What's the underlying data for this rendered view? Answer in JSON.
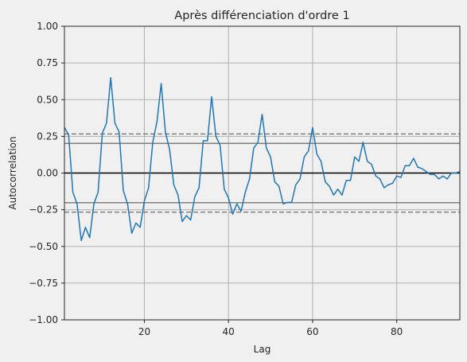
{
  "chart_data": {
    "type": "line",
    "title": "Après différenciation d'ordre 1",
    "xlabel": "Lag",
    "ylabel": "Autocorrelation",
    "xlim": [
      1,
      95
    ],
    "ylim": [
      -1.0,
      1.0
    ],
    "grid": true,
    "x_ticks": [
      20,
      40,
      60,
      80
    ],
    "x_tick_labels": [
      "20",
      "40",
      "60",
      "80"
    ],
    "y_ticks": [
      -1.0,
      -0.75,
      -0.5,
      -0.25,
      0.0,
      0.25,
      0.5,
      0.75,
      1.0
    ],
    "y_tick_labels": [
      "−1.00",
      "−0.75",
      "−0.50",
      "−0.25",
      "0.00",
      "0.25",
      "0.50",
      "0.75",
      "1.00"
    ],
    "confidence_bands": {
      "z95": [
        0.202,
        -0.202
      ],
      "z99": [
        0.266,
        -0.266
      ],
      "zero": 0.0
    },
    "series": [
      {
        "color": "#1f77b4",
        "x": [
          1,
          2,
          3,
          4,
          5,
          6,
          7,
          8,
          9,
          10,
          11,
          12,
          13,
          14,
          15,
          16,
          17,
          18,
          19,
          20,
          21,
          22,
          23,
          24,
          25,
          26,
          27,
          28,
          29,
          30,
          31,
          32,
          33,
          34,
          35,
          36,
          37,
          38,
          39,
          40,
          41,
          42,
          43,
          44,
          45,
          46,
          47,
          48,
          49,
          50,
          51,
          52,
          53,
          54,
          55,
          56,
          57,
          58,
          59,
          60,
          61,
          62,
          63,
          64,
          65,
          66,
          67,
          68,
          69,
          70,
          71,
          72,
          73,
          74,
          75,
          76,
          77,
          78,
          79,
          80,
          81,
          82,
          83,
          84,
          85,
          86,
          87,
          88,
          89,
          90,
          91,
          92,
          93,
          94,
          95
        ],
        "values": [
          0.31,
          0.26,
          -0.13,
          -0.21,
          -0.46,
          -0.37,
          -0.44,
          -0.21,
          -0.13,
          0.27,
          0.34,
          0.65,
          0.34,
          0.28,
          -0.12,
          -0.21,
          -0.41,
          -0.34,
          -0.37,
          -0.19,
          -0.1,
          0.21,
          0.35,
          0.61,
          0.28,
          0.16,
          -0.08,
          -0.15,
          -0.33,
          -0.29,
          -0.32,
          -0.16,
          -0.1,
          0.22,
          0.22,
          0.52,
          0.25,
          0.19,
          -0.11,
          -0.17,
          -0.28,
          -0.21,
          -0.26,
          -0.13,
          -0.04,
          0.17,
          0.21,
          0.4,
          0.17,
          0.11,
          -0.06,
          -0.09,
          -0.21,
          -0.2,
          -0.2,
          -0.08,
          -0.04,
          0.11,
          0.15,
          0.31,
          0.13,
          0.08,
          -0.06,
          -0.09,
          -0.15,
          -0.11,
          -0.15,
          -0.05,
          -0.05,
          0.11,
          0.08,
          0.21,
          0.08,
          0.06,
          -0.02,
          -0.04,
          -0.1,
          -0.08,
          -0.07,
          -0.02,
          -0.03,
          0.05,
          0.05,
          0.1,
          0.04,
          0.03,
          0.01,
          -0.01,
          -0.01,
          -0.04,
          -0.02,
          -0.04,
          0.0,
          0.0,
          0.01
        ]
      }
    ]
  }
}
